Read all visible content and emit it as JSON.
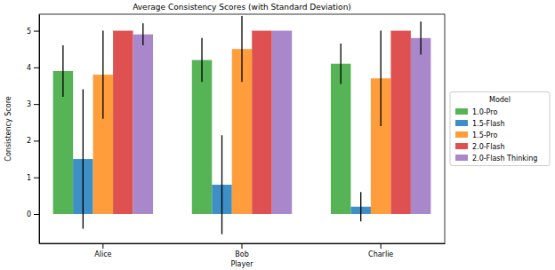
{
  "chart_data": {
    "type": "bar",
    "title": "Average Consistency Scores (with Standard Deviation)",
    "x_label": "Player",
    "y_label": "Consistency Score",
    "legend_title": "Model",
    "legend": "right",
    "categories": [
      "Alice",
      "Bob",
      "Charlie"
    ],
    "series": [
      {
        "name": "1.0-Pro",
        "color": "#56b356",
        "values": [
          3.9,
          4.2,
          4.1
        ],
        "errors": [
          0.7,
          0.6,
          0.55
        ]
      },
      {
        "name": "1.5-Flash",
        "color": "#3d8fc6",
        "values": [
          1.5,
          0.8,
          0.2
        ],
        "errors": [
          1.9,
          1.35,
          0.4
        ]
      },
      {
        "name": "1.5-Pro",
        "color": "#ff9d3c",
        "values": [
          3.8,
          4.5,
          3.7
        ],
        "errors": [
          1.2,
          0.9,
          1.3
        ]
      },
      {
        "name": "2.0-Flash",
        "color": "#df5050",
        "values": [
          5.0,
          5.0,
          5.0
        ],
        "errors": [
          0,
          0,
          0
        ]
      },
      {
        "name": "2.0-Flash Thinking",
        "color": "#a987cb",
        "values": [
          4.9,
          5.0,
          4.8
        ],
        "errors": [
          0.3,
          0,
          0.45
        ]
      }
    ],
    "ylim": [
      -0.8,
      5.45
    ],
    "yticks": [
      0,
      1,
      2,
      3,
      4,
      5
    ],
    "grid": false
  }
}
